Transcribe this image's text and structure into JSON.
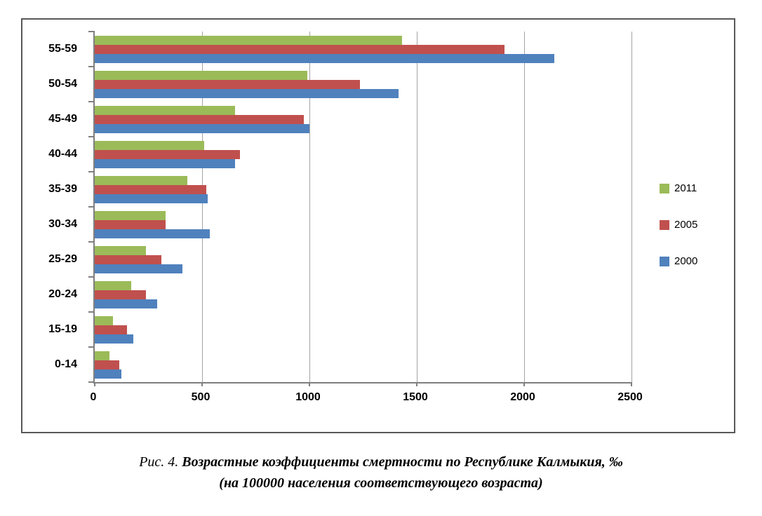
{
  "chart_data": {
    "type": "bar",
    "orientation": "horizontal",
    "categories": [
      "55-59",
      "50-54",
      "45-49",
      "40-44",
      "35-39",
      "30-34",
      "25-29",
      "20-24",
      "15-19",
      "0-14"
    ],
    "series": [
      {
        "name": "2011",
        "color": "#9BBB59",
        "values": [
          1430,
          990,
          655,
          510,
          430,
          330,
          240,
          170,
          85,
          70
        ]
      },
      {
        "name": "2005",
        "color": "#C0504D",
        "values": [
          1910,
          1235,
          975,
          675,
          520,
          330,
          310,
          240,
          150,
          115
        ]
      },
      {
        "name": "2000",
        "color": "#4F81BD",
        "values": [
          2140,
          1415,
          1000,
          655,
          525,
          535,
          410,
          290,
          180,
          125
        ]
      }
    ],
    "xlim": [
      0,
      2500
    ],
    "xticks": [
      0,
      500,
      1000,
      1500,
      2000,
      2500
    ],
    "grid": "vertical",
    "legend_position": "right",
    "legend_entries": [
      "2011",
      "2005",
      "2000"
    ]
  },
  "caption": {
    "prefix": "Рис. 4.",
    "title": "Возрастные коэффициенты смертности по Республике Калмыкия, ‰",
    "subtitle": "(на 100000 населения соответствующего возраста)"
  }
}
